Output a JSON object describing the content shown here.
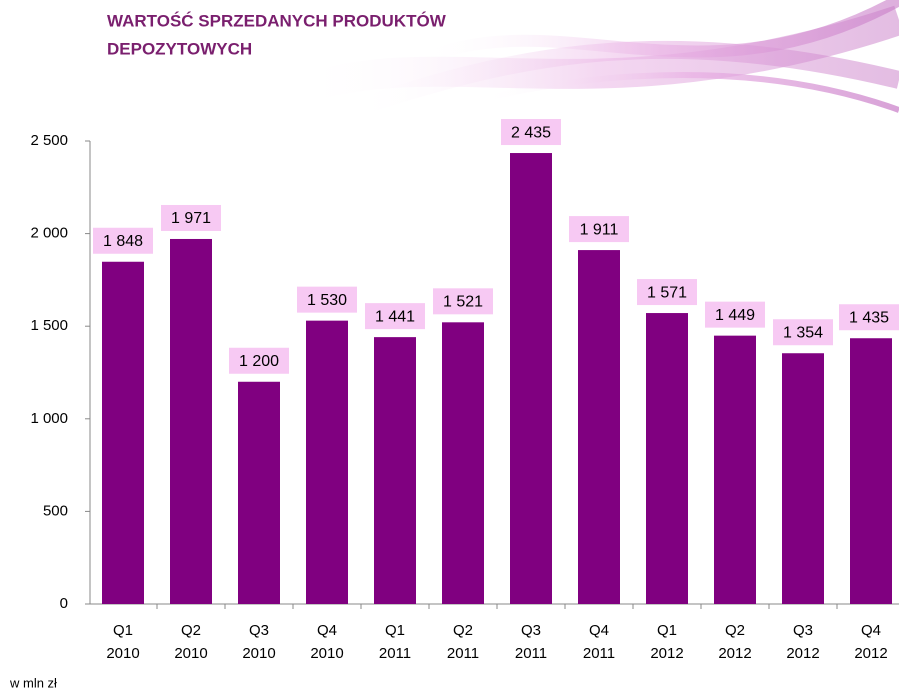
{
  "chart_data": {
    "type": "bar",
    "title": [
      "WARTOŚĆ SPRZEDANYCH PRODUKTÓW",
      "DEPOZYTOWYCH"
    ],
    "categories": [
      [
        "Q1",
        "2010"
      ],
      [
        "Q2",
        "2010"
      ],
      [
        "Q3",
        "2010"
      ],
      [
        "Q4",
        "2010"
      ],
      [
        "Q1",
        "2011"
      ],
      [
        "Q2",
        "2011"
      ],
      [
        "Q3",
        "2011"
      ],
      [
        "Q4",
        "2011"
      ],
      [
        "Q1",
        "2012"
      ],
      [
        "Q2",
        "2012"
      ],
      [
        "Q3",
        "2012"
      ],
      [
        "Q4",
        "2012"
      ]
    ],
    "values": [
      1848,
      1971,
      1200,
      1530,
      1441,
      1521,
      2435,
      1911,
      1571,
      1449,
      1354,
      1435
    ],
    "value_labels": [
      "1 848",
      "1 971",
      "1 200",
      "1 530",
      "1 441",
      "1 521",
      "2 435",
      "1 911",
      "1 571",
      "1 449",
      "1 354",
      "1 435"
    ],
    "color": "#800080",
    "ylim": [
      0,
      2500
    ],
    "yticks": [
      0,
      500,
      {
        "value": 1000,
        "label": "1 000"
      },
      {
        "value": 1500,
        "label": "1 500"
      },
      {
        "value": 2000,
        "label": "2 000"
      },
      {
        "value": 2500,
        "label": "2 500"
      }
    ],
    "note": "w mln zł"
  }
}
